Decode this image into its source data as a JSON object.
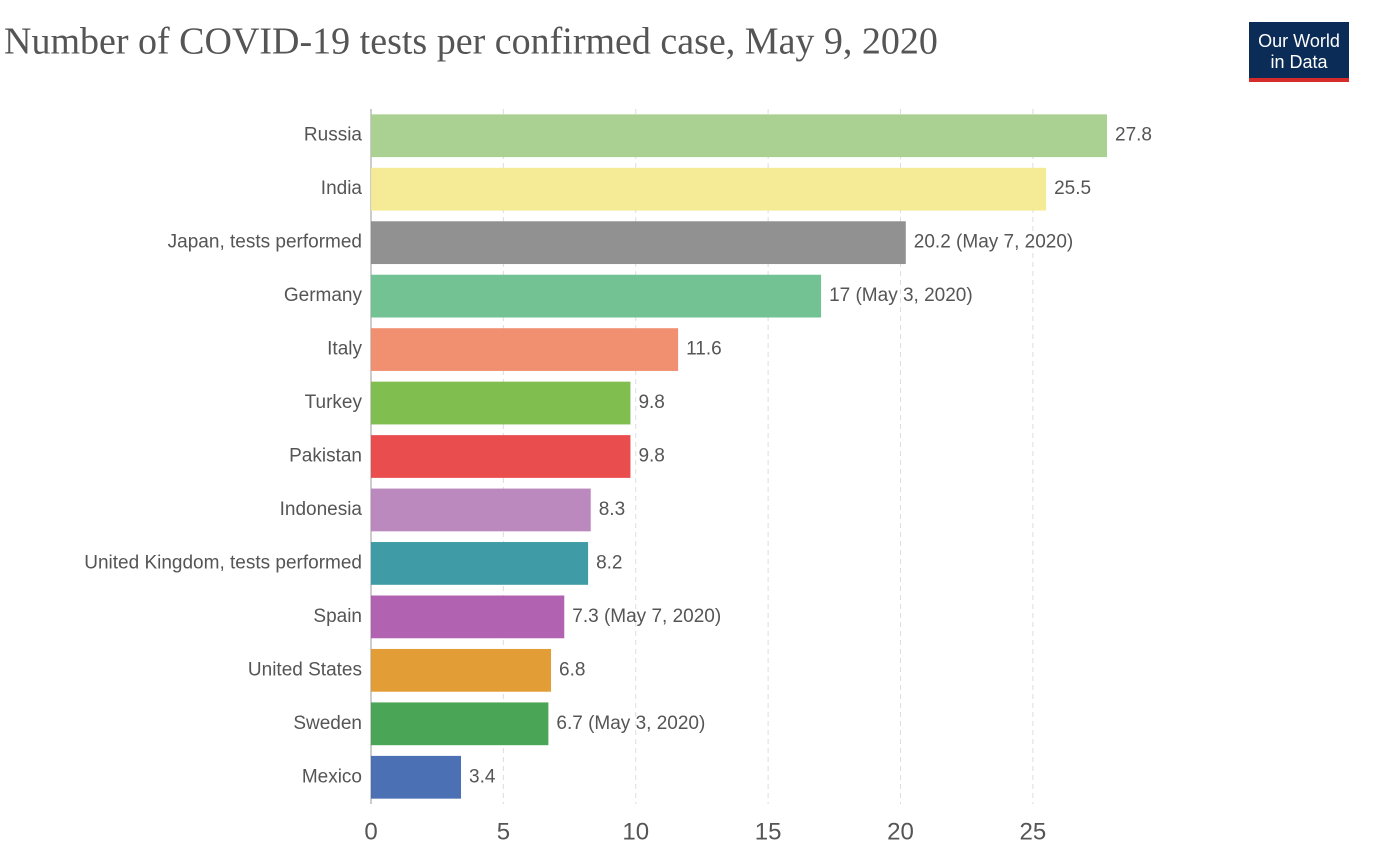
{
  "logo": [
    "Our World",
    "in Data"
  ],
  "chart_data": {
    "type": "bar",
    "orientation": "horizontal",
    "title": "Number of COVID-19 tests per confirmed case, May 9, 2020",
    "categories": [
      "Russia",
      "India",
      "Japan, tests performed",
      "Germany",
      "Italy",
      "Turkey",
      "Pakistan",
      "Indonesia",
      "United Kingdom, tests performed",
      "Spain",
      "United States",
      "Sweden",
      "Mexico"
    ],
    "values": [
      27.8,
      25.5,
      20.2,
      17,
      11.6,
      9.8,
      9.8,
      8.3,
      8.2,
      7.3,
      6.8,
      6.7,
      3.4
    ],
    "value_labels": [
      "27.8",
      "25.5",
      "20.2 (May 7, 2020)",
      "17 (May 3, 2020)",
      "11.6",
      "9.8",
      "9.8",
      "8.3",
      "8.2",
      "7.3 (May 7, 2020)",
      "6.8",
      "6.7 (May 3, 2020)",
      "3.4"
    ],
    "colors": [
      "#a5cf8c",
      "#f4ea91",
      "#8b8b8b",
      "#6cbf8e",
      "#f08a69",
      "#7aba47",
      "#e84343",
      "#b783ba",
      "#3597a1",
      "#ad5bad",
      "#e1982b",
      "#41a04d",
      "#4268b0"
    ],
    "xlim": [
      0,
      27.8
    ],
    "xticks": [
      0,
      5,
      10,
      15,
      20,
      25
    ],
    "grid": true
  }
}
